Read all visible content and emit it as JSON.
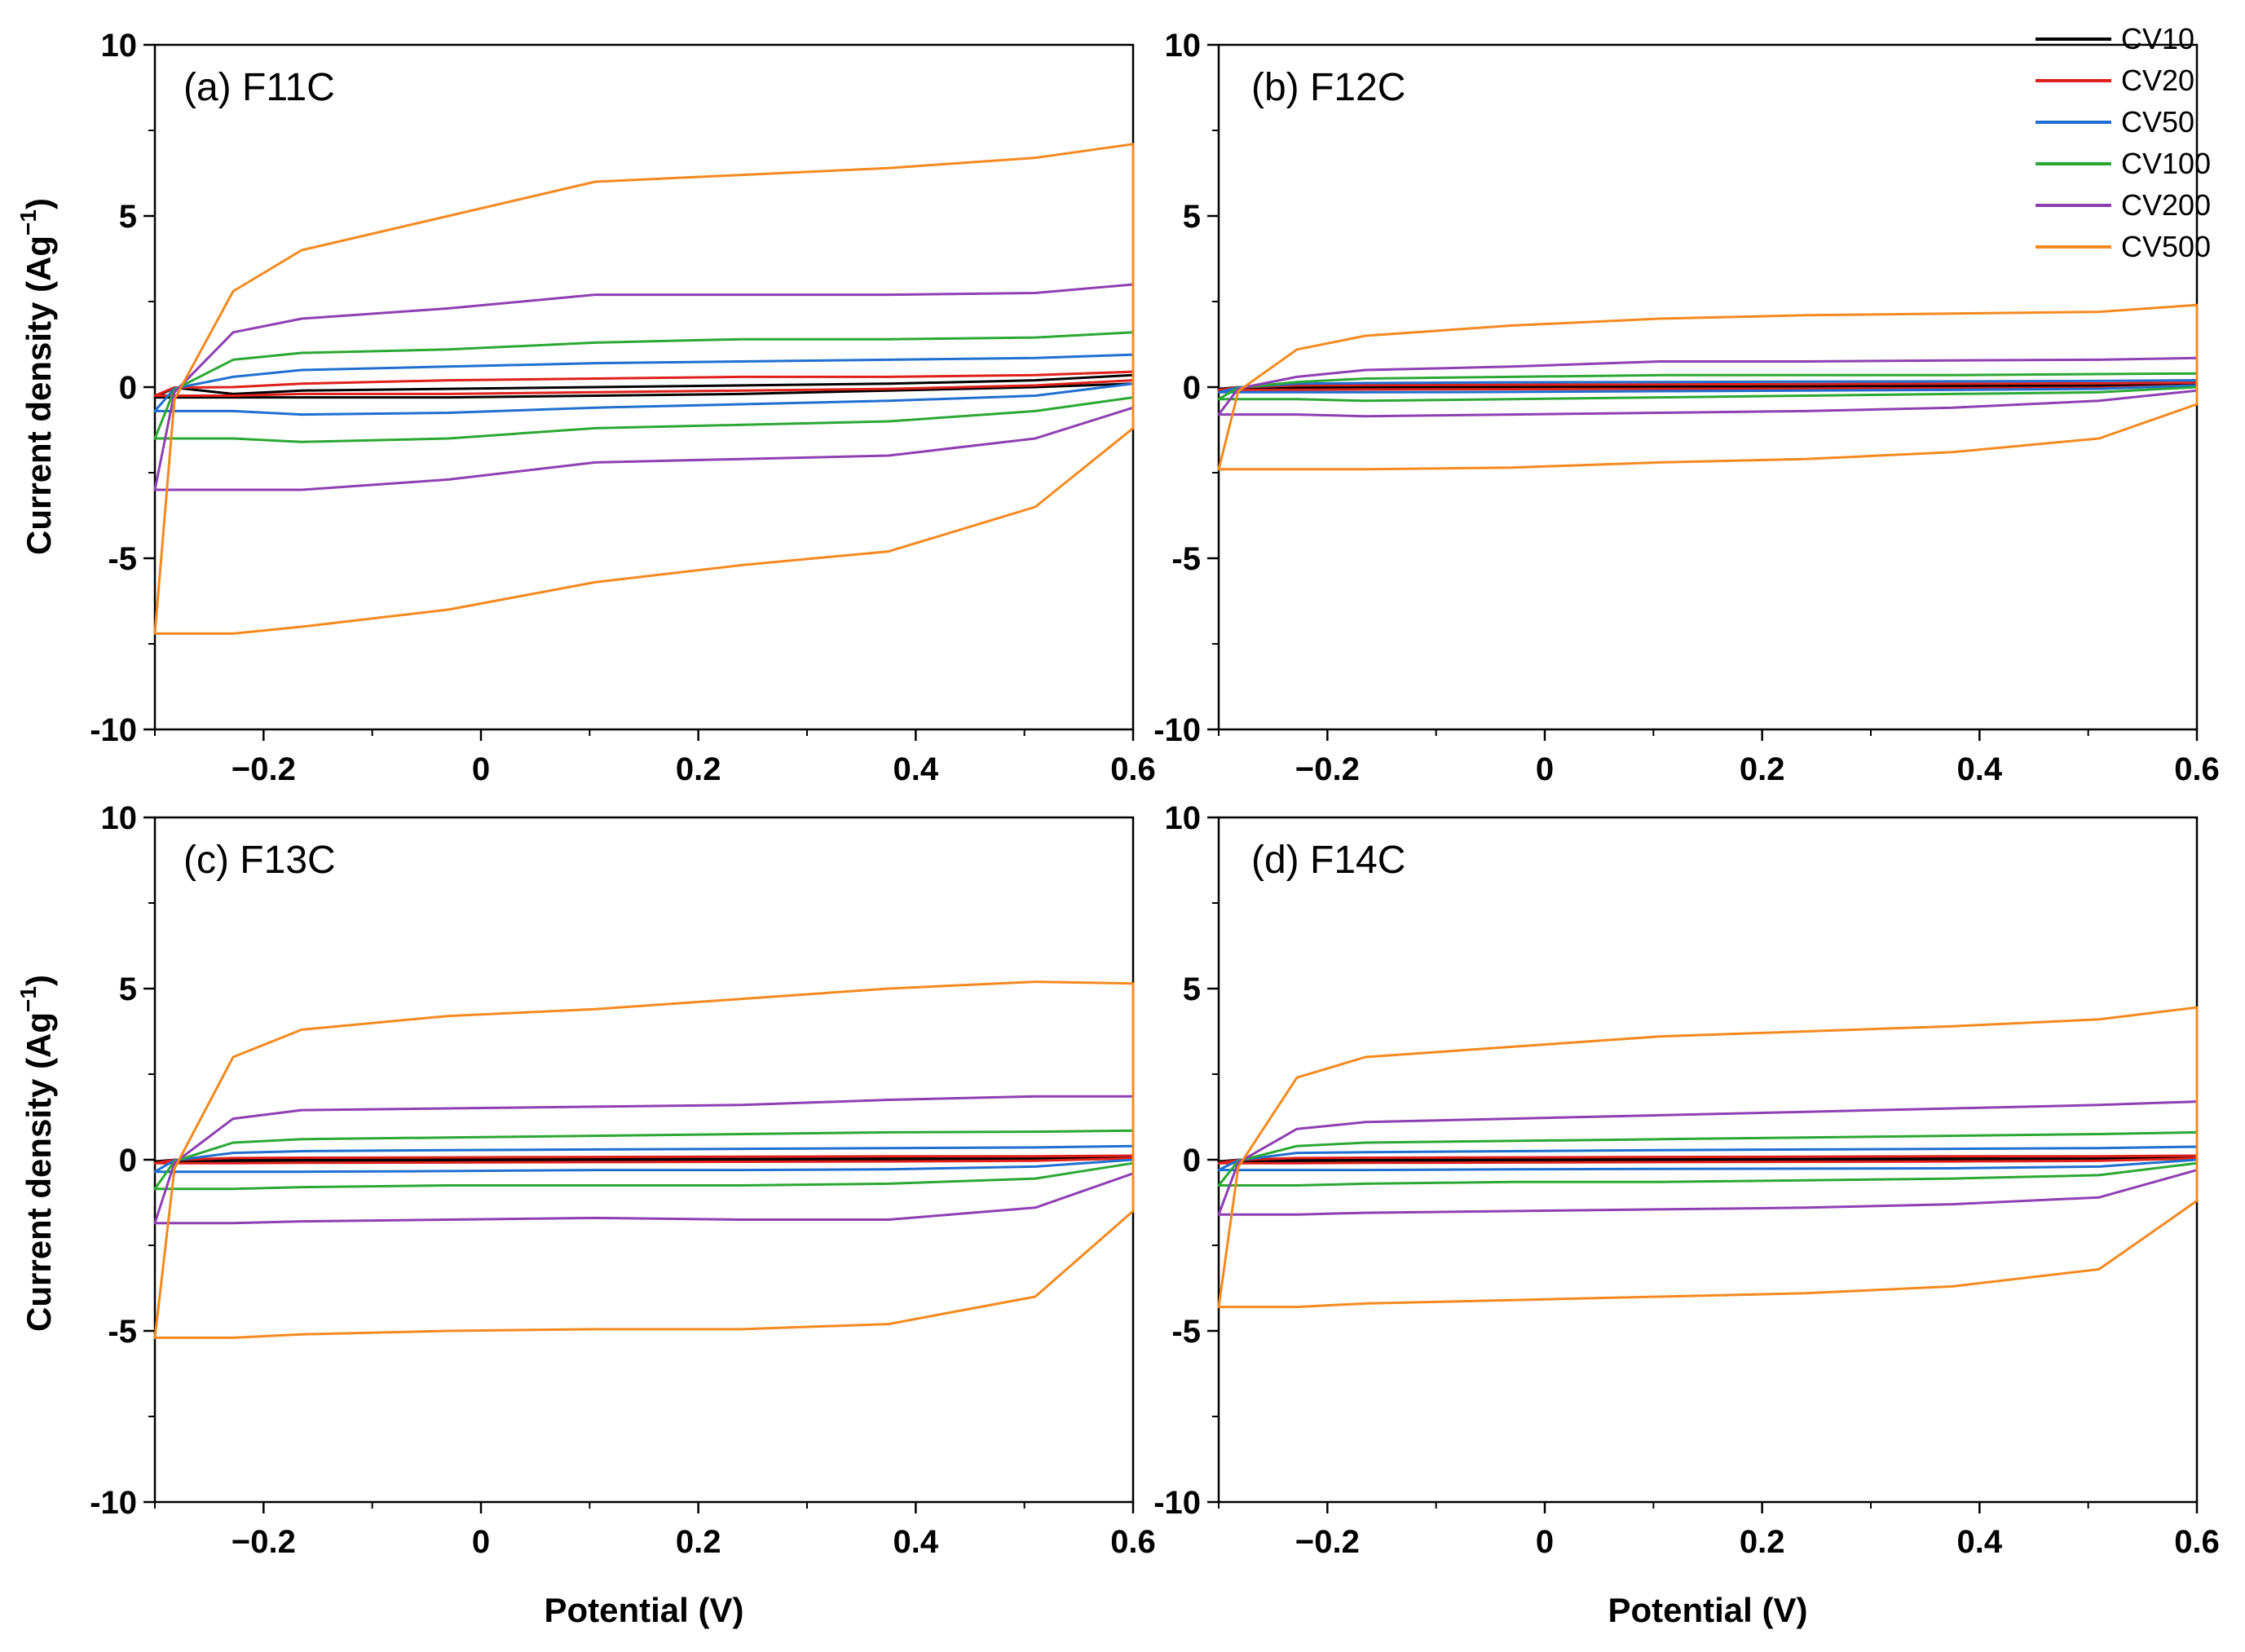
{
  "figure": {
    "ylabel": "Current density (Ag",
    "ylabel_sup": "−1",
    "ylabel_close": ")",
    "xlabel": "Potential (V)"
  },
  "legend": [
    {
      "name": "CV10",
      "color": "#000000"
    },
    {
      "name": "CV20",
      "color": "#e0201b"
    },
    {
      "name": "CV50",
      "color": "#1f6fd1"
    },
    {
      "name": "CV100",
      "color": "#2aa833"
    },
    {
      "name": "CV200",
      "color": "#8e3fb3"
    },
    {
      "name": "CV500",
      "color": "#f5891f"
    }
  ],
  "chart_data": [
    {
      "type": "line",
      "title": "(a) F11C",
      "xlabel": "Potential (V)",
      "ylabel": "Current density (Ag−1)",
      "xlim": [
        -0.3,
        0.6
      ],
      "ylim": [
        -10,
        10
      ],
      "xticks": [
        "−0.2",
        "0",
        "0.2",
        "0.4",
        "0.6"
      ],
      "yticks": [
        "10",
        "5",
        "0",
        "-5",
        "-10"
      ],
      "series": [
        {
          "name": "CV10",
          "upper": [
            -0.2,
            -0.1,
            -0.05,
            0.0,
            0.05,
            0.1,
            0.2,
            0.35
          ],
          "lower": [
            -0.3,
            -0.3,
            -0.3,
            -0.25,
            -0.2,
            -0.1,
            0.0,
            0.1
          ]
        },
        {
          "name": "CV20",
          "upper": [
            0.0,
            0.1,
            0.2,
            0.25,
            0.3,
            0.3,
            0.35,
            0.45
          ],
          "lower": [
            -0.25,
            -0.2,
            -0.2,
            -0.15,
            -0.1,
            -0.05,
            0.05,
            0.2
          ]
        },
        {
          "name": "CV50",
          "upper": [
            0.3,
            0.5,
            0.6,
            0.7,
            0.75,
            0.8,
            0.85,
            0.95
          ],
          "lower": [
            -0.7,
            -0.8,
            -0.75,
            -0.6,
            -0.5,
            -0.4,
            -0.25,
            0.1
          ]
        },
        {
          "name": "CV100",
          "upper": [
            0.8,
            1.0,
            1.1,
            1.3,
            1.4,
            1.4,
            1.45,
            1.6
          ],
          "lower": [
            -1.5,
            -1.6,
            -1.5,
            -1.2,
            -1.1,
            -1.0,
            -0.7,
            -0.3
          ]
        },
        {
          "name": "CV200",
          "upper": [
            1.6,
            2.0,
            2.3,
            2.7,
            2.7,
            2.7,
            2.75,
            3.0
          ],
          "lower": [
            -3.0,
            -3.0,
            -2.7,
            -2.2,
            -2.1,
            -2.0,
            -1.5,
            -0.6
          ]
        },
        {
          "name": "CV500",
          "upper": [
            2.8,
            4.0,
            5.0,
            6.0,
            6.2,
            6.4,
            6.7,
            7.1
          ],
          "lower": [
            -7.2,
            -7.0,
            -6.5,
            -5.7,
            -5.2,
            -4.8,
            -3.5,
            -1.2
          ]
        }
      ]
    },
    {
      "type": "line",
      "title": "(b) F12C",
      "xlabel": "Potential (V)",
      "ylabel": "Current density (Ag−1)",
      "xlim": [
        -0.3,
        0.6
      ],
      "ylim": [
        -10,
        10
      ],
      "xticks": [
        "−0.2",
        "0",
        "0.2",
        "0.4",
        "0.6"
      ],
      "yticks": [
        "10",
        "5",
        "0",
        "-5",
        "-10"
      ],
      "series": [
        {
          "name": "CV10",
          "upper": [
            0.0,
            0.0,
            0.02,
            0.03,
            0.04,
            0.05,
            0.06,
            0.08
          ],
          "lower": [
            -0.05,
            -0.05,
            -0.04,
            -0.03,
            -0.02,
            -0.01,
            0.0,
            0.05
          ]
        },
        {
          "name": "CV20",
          "upper": [
            0.05,
            0.06,
            0.07,
            0.08,
            0.09,
            0.1,
            0.11,
            0.13
          ],
          "lower": [
            -0.08,
            -0.07,
            -0.06,
            -0.05,
            -0.04,
            -0.03,
            -0.02,
            0.05
          ]
        },
        {
          "name": "CV50",
          "upper": [
            0.1,
            0.12,
            0.14,
            0.15,
            0.16,
            0.17,
            0.18,
            0.2
          ],
          "lower": [
            -0.15,
            -0.15,
            -0.14,
            -0.12,
            -0.1,
            -0.08,
            -0.05,
            0.05
          ]
        },
        {
          "name": "CV100",
          "upper": [
            0.15,
            0.25,
            0.3,
            0.35,
            0.35,
            0.35,
            0.38,
            0.4
          ],
          "lower": [
            -0.35,
            -0.4,
            -0.35,
            -0.3,
            -0.25,
            -0.2,
            -0.15,
            0.0
          ]
        },
        {
          "name": "CV200",
          "upper": [
            0.3,
            0.5,
            0.6,
            0.75,
            0.75,
            0.78,
            0.8,
            0.85
          ],
          "lower": [
            -0.8,
            -0.85,
            -0.8,
            -0.75,
            -0.7,
            -0.6,
            -0.4,
            -0.1
          ]
        },
        {
          "name": "CV500",
          "upper": [
            1.1,
            1.5,
            1.8,
            2.0,
            2.1,
            2.15,
            2.2,
            2.4
          ],
          "lower": [
            -2.4,
            -2.4,
            -2.35,
            -2.2,
            -2.1,
            -1.9,
            -1.5,
            -0.5
          ]
        }
      ]
    },
    {
      "type": "line",
      "title": "(c) F13C",
      "xlabel": "Potential (V)",
      "ylabel": "Current density (Ag−1)",
      "xlim": [
        -0.3,
        0.6
      ],
      "ylim": [
        -10,
        10
      ],
      "xticks": [
        "−0.2",
        "0",
        "0.2",
        "0.4",
        "0.6"
      ],
      "yticks": [
        "10",
        "5",
        "0",
        "-5",
        "-10"
      ],
      "series": [
        {
          "name": "CV10",
          "upper": [
            0.0,
            0.0,
            0.02,
            0.03,
            0.04,
            0.05,
            0.05,
            0.06
          ],
          "lower": [
            -0.05,
            -0.05,
            -0.04,
            -0.03,
            -0.02,
            -0.01,
            0.0,
            0.04
          ]
        },
        {
          "name": "CV20",
          "upper": [
            0.05,
            0.06,
            0.07,
            0.08,
            0.09,
            0.1,
            0.1,
            0.12
          ],
          "lower": [
            -0.1,
            -0.09,
            -0.08,
            -0.07,
            -0.06,
            -0.05,
            -0.03,
            0.04
          ]
        },
        {
          "name": "CV50",
          "upper": [
            0.2,
            0.25,
            0.28,
            0.3,
            0.32,
            0.34,
            0.36,
            0.4
          ],
          "lower": [
            -0.35,
            -0.35,
            -0.33,
            -0.3,
            -0.3,
            -0.28,
            -0.2,
            0.0
          ]
        },
        {
          "name": "CV100",
          "upper": [
            0.5,
            0.6,
            0.65,
            0.7,
            0.75,
            0.8,
            0.82,
            0.85
          ],
          "lower": [
            -0.85,
            -0.8,
            -0.75,
            -0.75,
            -0.75,
            -0.7,
            -0.55,
            -0.1
          ]
        },
        {
          "name": "CV200",
          "upper": [
            1.2,
            1.45,
            1.5,
            1.55,
            1.6,
            1.75,
            1.85,
            1.85
          ],
          "lower": [
            -1.85,
            -1.8,
            -1.75,
            -1.7,
            -1.75,
            -1.75,
            -1.4,
            -0.4
          ]
        },
        {
          "name": "CV500",
          "upper": [
            3.0,
            3.8,
            4.2,
            4.4,
            4.7,
            5.0,
            5.2,
            5.15
          ],
          "lower": [
            -5.2,
            -5.1,
            -5.0,
            -4.95,
            -4.95,
            -4.8,
            -4.0,
            -1.5
          ]
        }
      ]
    },
    {
      "type": "line",
      "title": "(d) F14C",
      "xlabel": "Potential (V)",
      "ylabel": "Current density (Ag−1)",
      "xlim": [
        -0.3,
        0.6
      ],
      "ylim": [
        -10,
        10
      ],
      "xticks": [
        "−0.2",
        "0",
        "0.2",
        "0.4",
        "0.6"
      ],
      "yticks": [
        "10",
        "5",
        "0",
        "-5",
        "-10"
      ],
      "series": [
        {
          "name": "CV10",
          "upper": [
            0.0,
            0.0,
            0.02,
            0.03,
            0.04,
            0.05,
            0.05,
            0.06
          ],
          "lower": [
            -0.05,
            -0.05,
            -0.04,
            -0.03,
            -0.02,
            -0.01,
            0.0,
            0.04
          ]
        },
        {
          "name": "CV20",
          "upper": [
            0.05,
            0.06,
            0.07,
            0.08,
            0.09,
            0.1,
            0.1,
            0.12
          ],
          "lower": [
            -0.1,
            -0.09,
            -0.08,
            -0.07,
            -0.06,
            -0.05,
            -0.03,
            0.04
          ]
        },
        {
          "name": "CV50",
          "upper": [
            0.2,
            0.22,
            0.25,
            0.28,
            0.3,
            0.32,
            0.34,
            0.38
          ],
          "lower": [
            -0.3,
            -0.3,
            -0.28,
            -0.27,
            -0.26,
            -0.25,
            -0.2,
            0.0
          ]
        },
        {
          "name": "CV100",
          "upper": [
            0.4,
            0.5,
            0.55,
            0.6,
            0.65,
            0.7,
            0.75,
            0.8
          ],
          "lower": [
            -0.75,
            -0.7,
            -0.65,
            -0.65,
            -0.6,
            -0.55,
            -0.45,
            -0.1
          ]
        },
        {
          "name": "CV200",
          "upper": [
            0.9,
            1.1,
            1.2,
            1.3,
            1.4,
            1.5,
            1.6,
            1.7
          ],
          "lower": [
            -1.6,
            -1.55,
            -1.5,
            -1.45,
            -1.4,
            -1.3,
            -1.1,
            -0.3
          ]
        },
        {
          "name": "CV500",
          "upper": [
            2.4,
            3.0,
            3.3,
            3.6,
            3.75,
            3.9,
            4.1,
            4.45
          ],
          "lower": [
            -4.3,
            -4.2,
            -4.1,
            -4.0,
            -3.9,
            -3.7,
            -3.2,
            -1.2
          ]
        }
      ]
    }
  ]
}
